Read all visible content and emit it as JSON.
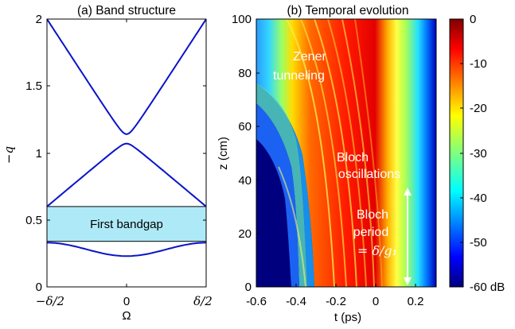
{
  "colors": {
    "band": "#0a14c8",
    "bandgap_fill": "#aee9f7",
    "colormap": [
      "#00007f",
      "#0000ff",
      "#007fff",
      "#00ffff",
      "#7fff7f",
      "#ffff00",
      "#ff7f00",
      "#ff0000",
      "#7f0000"
    ]
  },
  "chart_data": [
    {
      "type": "line",
      "title": "(a) Band structure",
      "xlabel": "Ω",
      "ylabel": "−q",
      "xlim": [
        "−δ/2",
        "δ/2"
      ],
      "ylim": [
        0,
        2
      ],
      "x_ticks": [
        "−δ/2",
        "0",
        "δ/2"
      ],
      "y_ticks": [
        "0",
        "0.5",
        "1",
        "1.5",
        "2"
      ],
      "annotation": "First bandgap",
      "bandgap": [
        0.34,
        0.6
      ],
      "series": [
        {
          "description": "lowest band",
          "x": [
            -1,
            0,
            1
          ],
          "values": [
            0.33,
            0.23,
            0.33
          ]
        },
        {
          "description": "second band",
          "x": [
            -1,
            -0.5,
            0,
            0.5,
            1
          ],
          "values": [
            0.6,
            0.77,
            1.07,
            0.77,
            0.6
          ]
        },
        {
          "description": "third band",
          "x": [
            -1,
            -0.5,
            0,
            0.5,
            1
          ],
          "values": [
            2.0,
            1.62,
            1.14,
            1.62,
            2.0
          ]
        }
      ],
      "grid": false
    },
    {
      "type": "heatmap",
      "title": "(b) Temporal evolution",
      "xlabel": "t (ps)",
      "ylabel": "z (cm)",
      "xlim": [
        -0.6,
        0.3
      ],
      "ylim": [
        0,
        100
      ],
      "x_ticks": [
        "-0.6",
        "-0.4",
        "-0.2",
        "0",
        "0.2"
      ],
      "y_ticks": [
        "0",
        "20",
        "40",
        "60",
        "80",
        "100"
      ],
      "colorbar": {
        "range": [
          -60,
          0
        ],
        "ticks": [
          "0",
          "-10",
          "-20",
          "-30",
          "-40",
          "-50",
          "-60 dB"
        ]
      },
      "annotations": {
        "zener": [
          "Zener",
          "tunneling"
        ],
        "bloch_osc": [
          "Bloch",
          "oscillations"
        ],
        "bloch_period": [
          "Bloch",
          "period",
          "= δ/g₁"
        ]
      }
    }
  ]
}
